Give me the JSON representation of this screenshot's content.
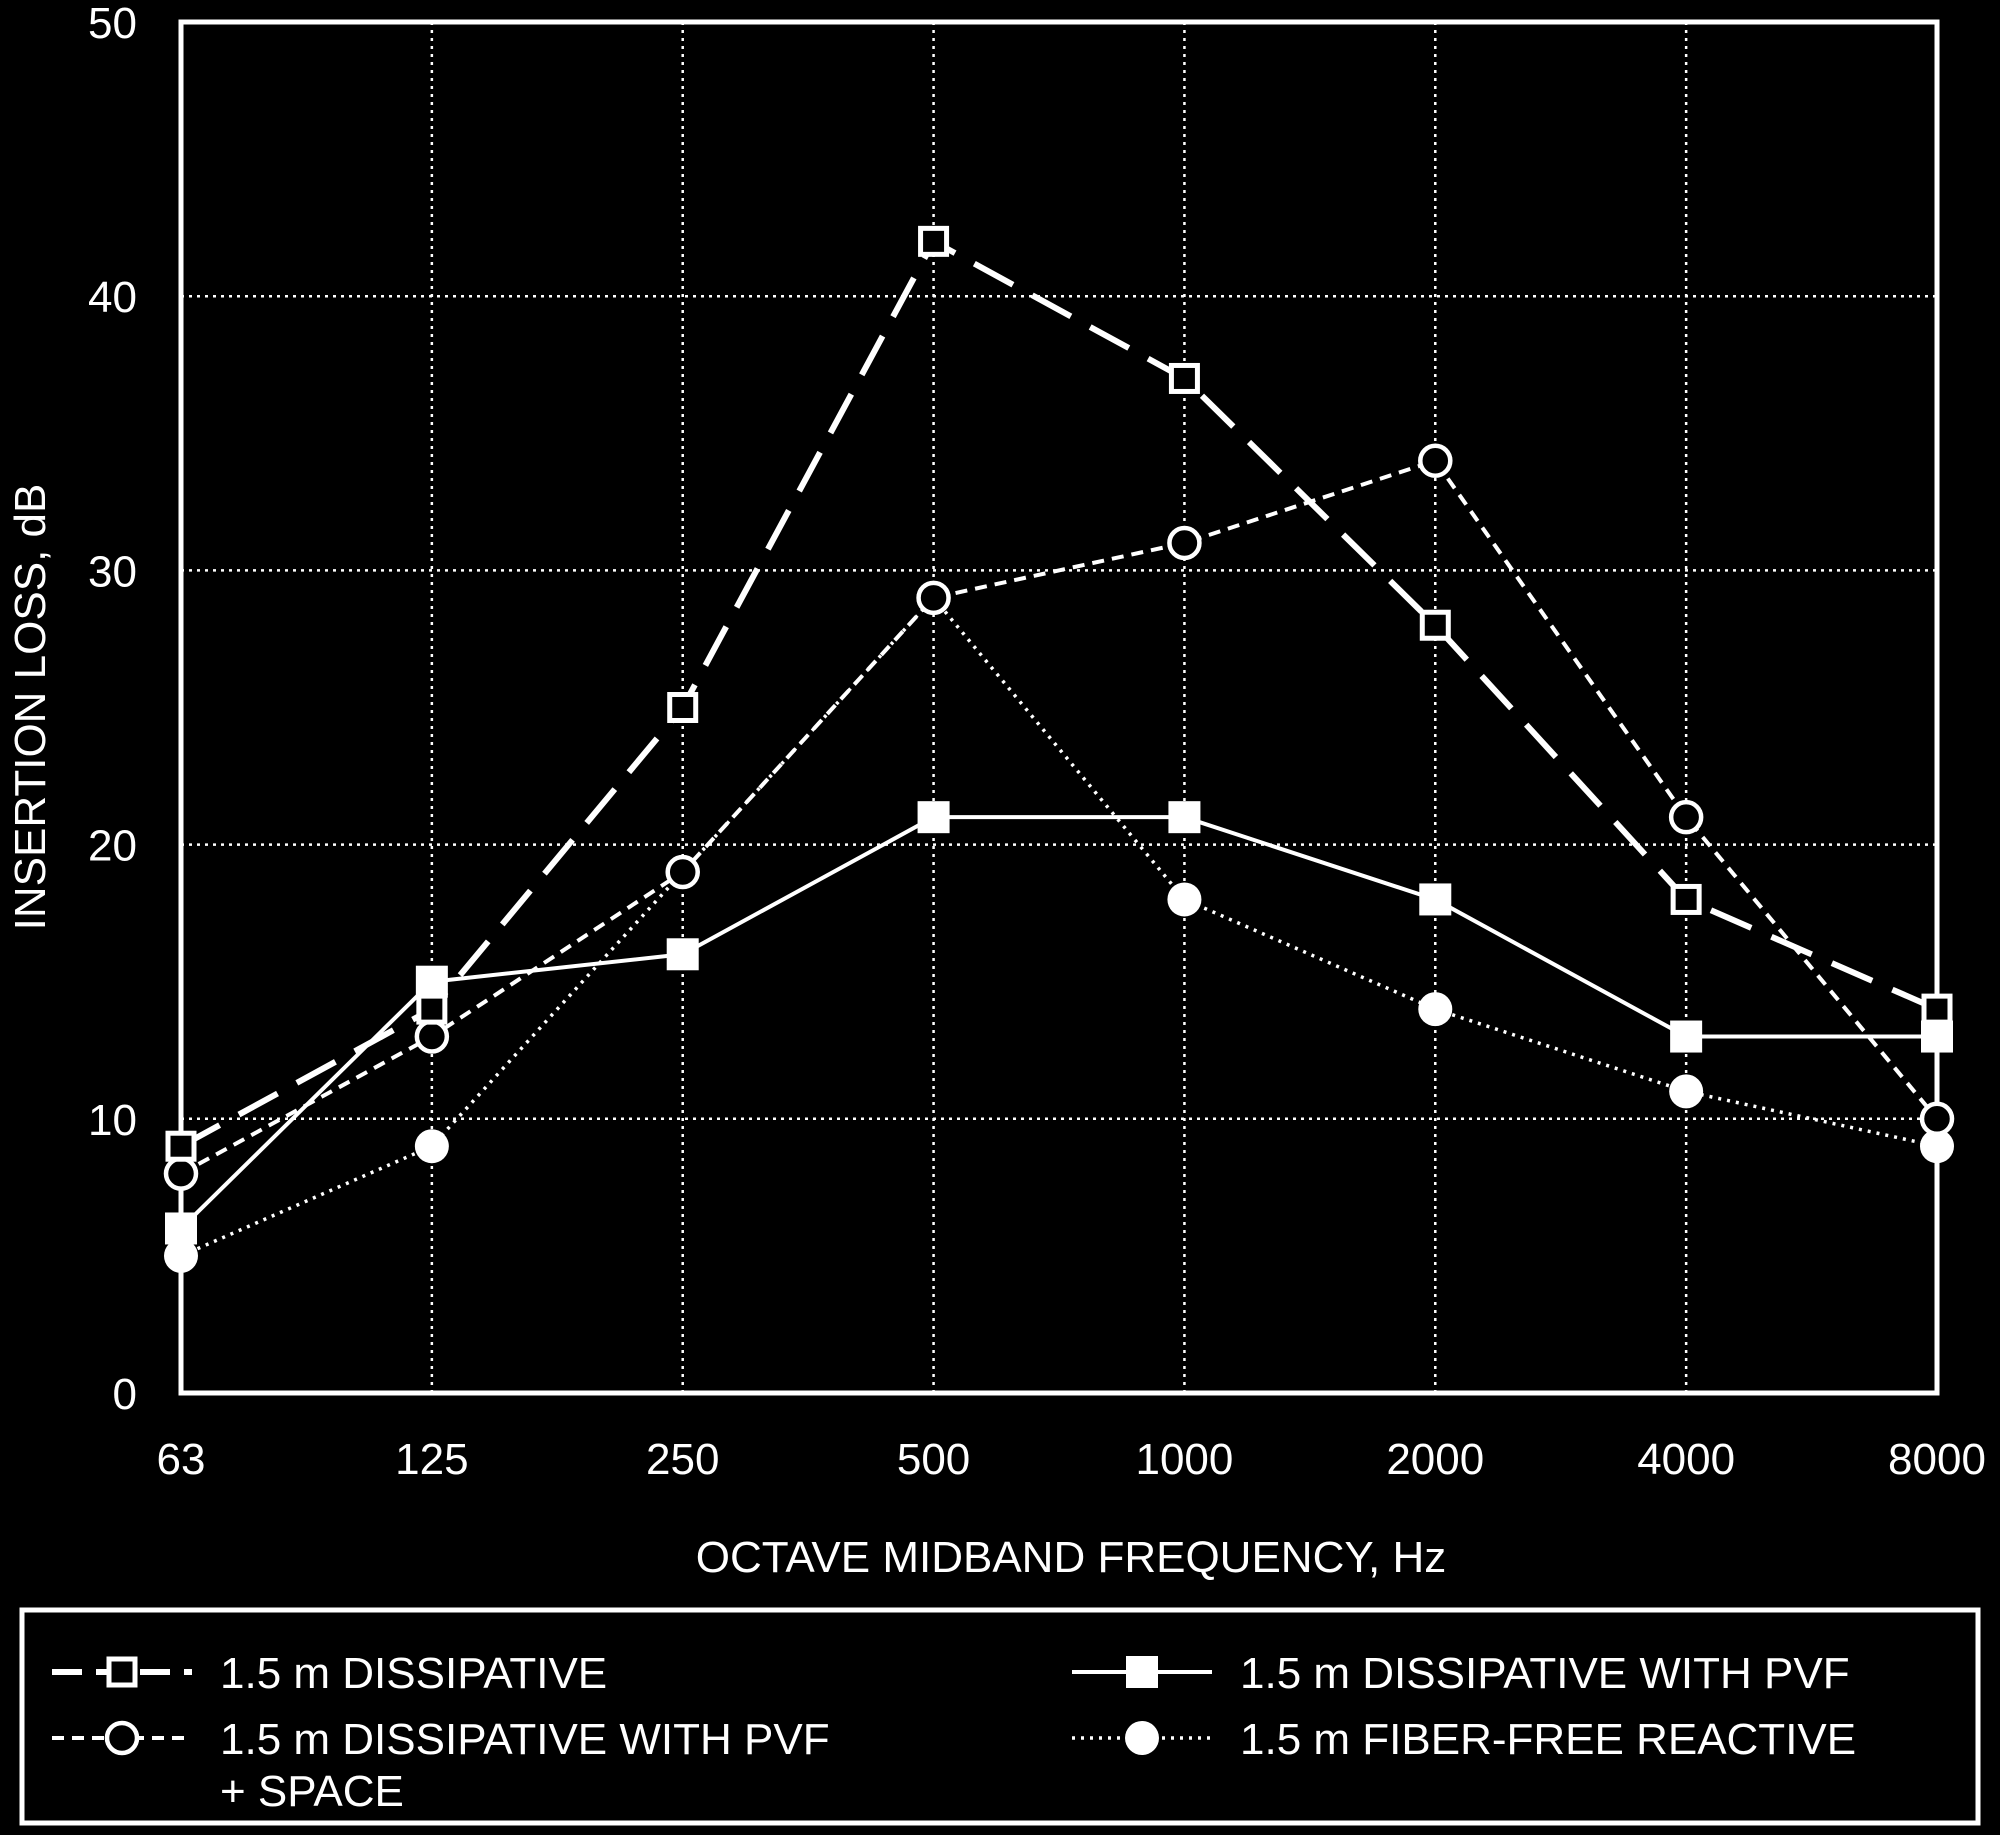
{
  "chart_data": {
    "type": "line",
    "xlabel": "OCTAVE MIDBAND FREQUENCY, Hz",
    "ylabel": "INSERTION LOSS, dB",
    "categories": [
      "63",
      "125",
      "250",
      "500",
      "1000",
      "2000",
      "4000",
      "8000"
    ],
    "ylim": [
      0,
      50
    ],
    "yticks": [
      "0",
      "10",
      "20",
      "30",
      "40",
      "50"
    ],
    "grid": true,
    "legend_position": "bottom",
    "series": [
      {
        "name": "1.5 m DISSIPATIVE",
        "marker": "open-square",
        "line": "long-dash",
        "values": [
          9,
          14,
          25,
          42,
          37,
          28,
          18,
          14
        ]
      },
      {
        "name": "1.5 m DISSIPATIVE WITH PVF",
        "marker": "filled-square",
        "line": "solid",
        "values": [
          6,
          15,
          16,
          21,
          21,
          18,
          13,
          13
        ]
      },
      {
        "name": "1.5 m DISSIPATIVE WITH PVF\n+ SPACE",
        "name_lines": [
          "1.5 m DISSIPATIVE WITH PVF",
          "+ SPACE"
        ],
        "marker": "open-circle",
        "line": "short-dash",
        "values": [
          8,
          13,
          19,
          29,
          31,
          34,
          21,
          10
        ]
      },
      {
        "name": "1.5 m FIBER-FREE REACTIVE",
        "marker": "filled-circle",
        "line": "dotted",
        "values": [
          5,
          9,
          19,
          29,
          18,
          14,
          11,
          9
        ]
      }
    ]
  }
}
